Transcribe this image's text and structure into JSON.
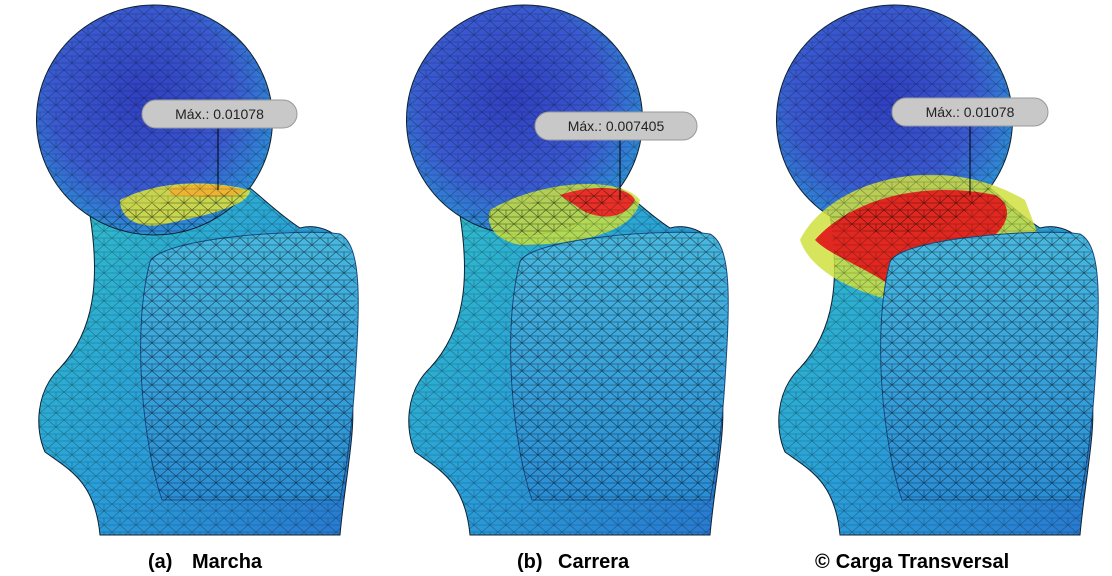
{
  "panels": [
    {
      "callout": "Máx.: 0.01078",
      "caption_tag": "(a)",
      "caption": "Marcha"
    },
    {
      "callout": "Máx.: 0.007405",
      "caption_tag": "(b)",
      "caption": "Carrera"
    },
    {
      "callout": "Máx.: 0.01078",
      "caption_tag": "©",
      "caption": "Carga Transversal"
    }
  ]
}
